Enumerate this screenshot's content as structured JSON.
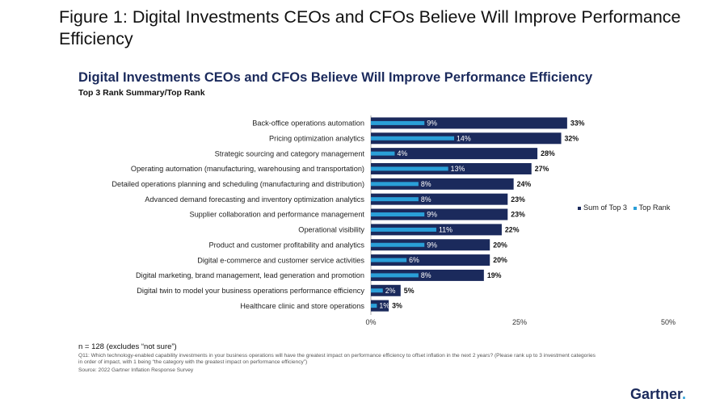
{
  "figure_title": "Figure 1: Digital Investments CEOs and CFOs Believe Will Improve Performance Efficiency",
  "chart_data": {
    "type": "bar",
    "orientation": "horizontal",
    "title": "Digital Investments CEOs and CFOs Believe Will Improve Performance Efficiency",
    "subtitle": "Top 3 Rank Summary/Top Rank",
    "categories": [
      "Back-office operations automation",
      "Pricing optimization analytics",
      "Strategic sourcing and category management",
      "Operating automation (manufacturing, warehousing and transportation)",
      "Detailed operations planning and scheduling (manufacturing and distribution)",
      "Advanced demand forecasting and inventory optimization analytics",
      "Supplier collaboration and performance management",
      "Operational visibility",
      "Product and customer profitability and analytics",
      "Digital e-commerce and customer service activities",
      "Digital marketing, brand management, lead generation and promotion",
      "Digital twin to model your business operations performance efficiency",
      "Healthcare clinic and store operations"
    ],
    "series": [
      {
        "name": "Sum of Top 3",
        "color": "#1b2a5c",
        "values": [
          33,
          32,
          28,
          27,
          24,
          23,
          23,
          22,
          20,
          20,
          19,
          5,
          3
        ]
      },
      {
        "name": "Top Rank",
        "color": "#2a9fd8",
        "values": [
          9,
          14,
          4,
          13,
          8,
          8,
          9,
          11,
          9,
          6,
          8,
          2,
          1
        ]
      }
    ],
    "xlim": [
      0,
      50
    ],
    "xticks": [
      0,
      25,
      50
    ],
    "value_suffix": "%",
    "legend_position": "right"
  },
  "legend": {
    "sum_label": "Sum of Top 3",
    "top_label": "Top Rank"
  },
  "notes": {
    "n": "n = 128 (excludes “not sure”)",
    "question": "Q11: Which technology-enabled capability investments in your business operations will have the greatest impact on performance efficiency to offset inflation in the next 2 years? (Please rank up to 3 investment categories in order of impact, with 1 being “the category with the greatest impact on performance efficiency”)",
    "source": "Source: 2022 Gartner Inflation Response Survey"
  },
  "brand": {
    "name": "Gartner",
    "dot": "."
  }
}
